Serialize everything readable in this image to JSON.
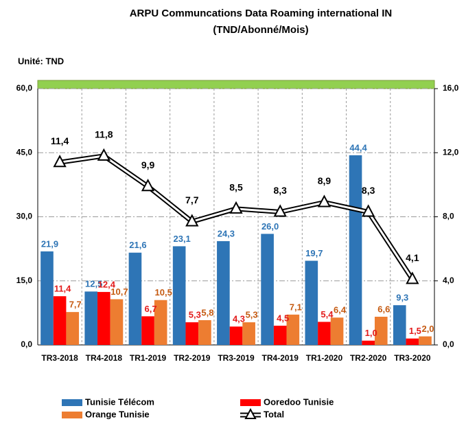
{
  "chart_data": {
    "type": "bar",
    "title": "ARPU Communcations Data  Roaming international IN",
    "subtitle": "(TND/Abonné/Mois)",
    "unit_label": "Unité: TND",
    "categories": [
      "TR3-2018",
      "TR4-2018",
      "TR1-2019",
      "TR2-2019",
      "TR3-2019",
      "TR4-2019",
      "TR1-2020",
      "TR2-2020",
      "TR3-2020"
    ],
    "series": [
      {
        "name": "Tunisie Télécom",
        "color": "#2e75b6",
        "label_color": "#2e75b6",
        "values": [
          21.9,
          12.5,
          21.6,
          23.1,
          24.3,
          26.0,
          19.7,
          44.4,
          9.3
        ],
        "value_labels": [
          "21,9",
          "12,5",
          "21,6",
          "23,1",
          "24,3",
          "26,0",
          "19,7",
          "44,4",
          "9,3"
        ]
      },
      {
        "name": "Ooredoo Tunisie",
        "color": "#ff0000",
        "label_color": "#e31b1b",
        "values": [
          11.4,
          12.4,
          6.7,
          5.3,
          4.3,
          4.5,
          5.4,
          1.0,
          1.5
        ],
        "value_labels": [
          "11,4",
          "12,4",
          "6,7",
          "5,3",
          "4,3",
          "4,5",
          "5,4",
          "1,0",
          "1,5"
        ]
      },
      {
        "name": "Orange Tunisie",
        "color": "#ed7d31",
        "label_color": "#c55a11",
        "values": [
          7.7,
          10.7,
          10.5,
          5.8,
          5.3,
          7.1,
          6.4,
          6.6,
          2.0
        ],
        "value_labels": [
          "7,7",
          "10,7",
          "10,5",
          "5,8",
          "5,3",
          "7,1",
          "6,4",
          "6,6",
          "2,0"
        ]
      },
      {
        "name": "Total",
        "type": "line",
        "axis": "y2",
        "color": "#000000",
        "label_color": "#000000",
        "values": [
          11.4,
          11.8,
          9.9,
          7.7,
          8.5,
          8.3,
          8.9,
          8.3,
          4.1
        ],
        "value_labels": [
          "11,4",
          "11,8",
          "9,9",
          "7,7",
          "8,5",
          "8,3",
          "8,9",
          "8,3",
          "4,1"
        ]
      }
    ],
    "ylim": [
      0,
      60
    ],
    "yticks": [
      {
        "value": 0,
        "label": "0,0"
      },
      {
        "value": 15,
        "label": "15,0"
      },
      {
        "value": 30,
        "label": "30,0"
      },
      {
        "value": 45,
        "label": "45,0"
      },
      {
        "value": 60,
        "label": "60,0"
      }
    ],
    "y2lim": [
      0,
      16
    ],
    "y2ticks": [
      {
        "value": 0,
        "label": "0,0"
      },
      {
        "value": 4,
        "label": "4,0"
      },
      {
        "value": 8,
        "label": "8,0"
      },
      {
        "value": 12,
        "label": "12,0"
      },
      {
        "value": 16,
        "label": "16,0"
      }
    ],
    "grid": true,
    "legend": "bottom"
  }
}
